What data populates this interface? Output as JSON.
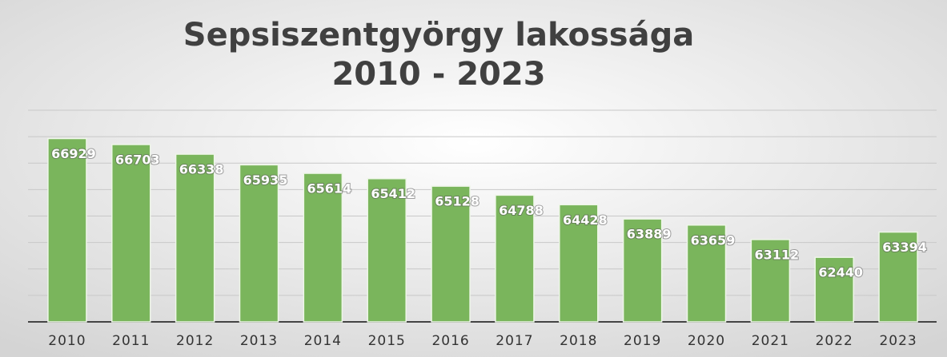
{
  "chart_data": {
    "type": "bar",
    "title": "Sepsiszentgyörgy lakossága",
    "subtitle": "2010 - 2023",
    "categories": [
      "2010",
      "2011",
      "2012",
      "2013",
      "2014",
      "2015",
      "2016",
      "2017",
      "2018",
      "2019",
      "2020",
      "2021",
      "2022",
      "2023"
    ],
    "values": [
      66929,
      66703,
      66338,
      65935,
      65614,
      65412,
      65128,
      64788,
      64428,
      63889,
      63659,
      63112,
      62440,
      63394
    ],
    "color": "#7ab55c",
    "ylim": [
      60000,
      68000
    ],
    "yticks": [
      60000,
      61000,
      62000,
      63000,
      64000,
      65000,
      66000,
      67000,
      68000
    ],
    "grid": true
  }
}
